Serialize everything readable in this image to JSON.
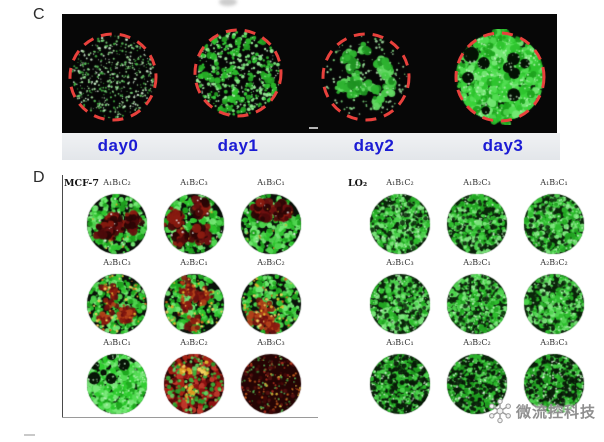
{
  "panels": {
    "c": {
      "label": "C",
      "image_strip": {
        "background": "#070707",
        "ring_color": "#e8413c"
      },
      "days": [
        {
          "label": "day0",
          "texture": "sparse-dots"
        },
        {
          "label": "day1",
          "texture": "medium-dots"
        },
        {
          "label": "day2",
          "texture": "clustered-patches"
        },
        {
          "label": "day3",
          "texture": "dense-confluent"
        }
      ],
      "label_band": {
        "background": "#eceef1",
        "text_color": "#1b1bd4"
      }
    },
    "d": {
      "label": "D",
      "groups": [
        {
          "name": "MCF-7",
          "wells": [
            {
              "label": "A₁B₁C₂",
              "texture": "green-darkred"
            },
            {
              "label": "A₁B₂C₃",
              "texture": "green-darkred"
            },
            {
              "label": "A₁B₃C₁",
              "texture": "green-darkred"
            },
            {
              "label": "A₂B₁C₃",
              "texture": "green-red-speckled"
            },
            {
              "label": "A₂B₂C₁",
              "texture": "green-red-speckled"
            },
            {
              "label": "A₂B₃C₂",
              "texture": "green-red-speckled"
            },
            {
              "label": "A₃B₁C₁",
              "texture": "bright-green"
            },
            {
              "label": "A₃B₂C₂",
              "texture": "red-yellow-green"
            },
            {
              "label": "A₃B₃C₃",
              "texture": "dark-red-sparse"
            }
          ]
        },
        {
          "name": "LO₂",
          "wells": [
            {
              "label": "A₁B₁C₂",
              "texture": "uniform-green"
            },
            {
              "label": "A₁B₂C₃",
              "texture": "uniform-green"
            },
            {
              "label": "A₁B₃C₁",
              "texture": "uniform-green"
            },
            {
              "label": "A₂B₁C₃",
              "texture": "uniform-green"
            },
            {
              "label": "A₂B₂C₁",
              "texture": "uniform-green"
            },
            {
              "label": "A₂B₃C₂",
              "texture": "uniform-green"
            },
            {
              "label": "A₃B₁C₁",
              "texture": "speckled-green"
            },
            {
              "label": "A₃B₂C₂",
              "texture": "speckled-green"
            },
            {
              "label": "A₃B₃C₃",
              "texture": "speckled-green"
            }
          ]
        }
      ]
    }
  },
  "watermark": {
    "text": "微流控科技",
    "icon": "snowflake-logo-icon"
  }
}
